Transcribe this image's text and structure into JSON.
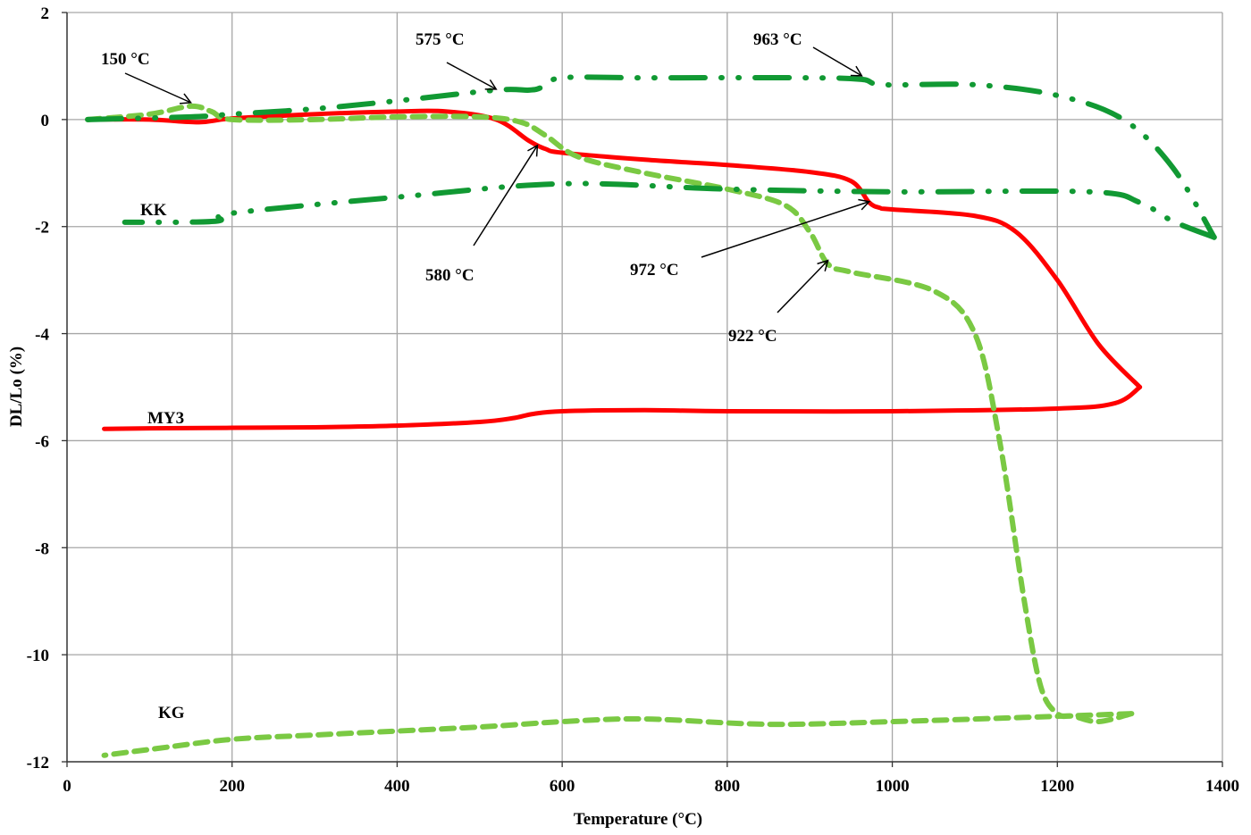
{
  "chart_data": {
    "type": "line",
    "title": "",
    "xlabel": "Temperature (°C)",
    "ylabel": "DL/Lo (%)",
    "xlim": [
      0,
      1400
    ],
    "ylim": [
      -12,
      2
    ],
    "x_ticks": [
      "0",
      "200",
      "400",
      "600",
      "800",
      "1000",
      "1200",
      "1400"
    ],
    "y_ticks": [
      "2",
      "0",
      "-2",
      "-4",
      "-6",
      "-8",
      "-10",
      "-12"
    ],
    "grid": true,
    "legend": "inline labels",
    "series": [
      {
        "name": "MY3",
        "color": "#ff0000",
        "style": "solid",
        "heating": {
          "x": [
            25,
            100,
            160,
            200,
            300,
            400,
            460,
            520,
            560,
            580,
            600,
            700,
            800,
            900,
            950,
            972,
            985,
            1000,
            1100,
            1150,
            1200,
            1250,
            1300
          ],
          "y": [
            0,
            0,
            -0.05,
            0.02,
            0.1,
            0.15,
            0.15,
            0.0,
            -0.4,
            -0.55,
            -0.62,
            -0.75,
            -0.85,
            -0.98,
            -1.15,
            -1.55,
            -1.65,
            -1.68,
            -1.8,
            -2.1,
            -3.0,
            -4.2,
            -5.0
          ]
        },
        "cooling": {
          "x": [
            1300,
            1270,
            1200,
            1000,
            800,
            700,
            600,
            565,
            540,
            500,
            400,
            300,
            200,
            100,
            45
          ],
          "y": [
            -5.0,
            -5.3,
            -5.4,
            -5.45,
            -5.45,
            -5.43,
            -5.45,
            -5.5,
            -5.58,
            -5.65,
            -5.72,
            -5.75,
            -5.76,
            -5.77,
            -5.78
          ]
        }
      },
      {
        "name": "KG",
        "color": "#7ac943",
        "style": "dashed",
        "heating": {
          "x": [
            25,
            100,
            150,
            175,
            200,
            300,
            400,
            500,
            550,
            580,
            620,
            700,
            800,
            870,
            900,
            922,
            950,
            1050,
            1100,
            1130,
            1160,
            1180,
            1200,
            1220,
            1250,
            1290
          ],
          "y": [
            0,
            0.1,
            0.25,
            0.15,
            0.0,
            0.0,
            0.05,
            0.05,
            -0.05,
            -0.3,
            -0.7,
            -1.0,
            -1.3,
            -1.6,
            -2.1,
            -2.7,
            -2.85,
            -3.2,
            -4.0,
            -6.0,
            -9.0,
            -10.6,
            -11.1,
            -11.15,
            -11.25,
            -11.1
          ]
        },
        "cooling": {
          "x": [
            1290,
            1200,
            1000,
            850,
            700,
            600,
            500,
            300,
            200,
            110,
            45
          ],
          "y": [
            -11.1,
            -11.15,
            -11.25,
            -11.3,
            -11.2,
            -11.25,
            -11.35,
            -11.5,
            -11.58,
            -11.75,
            -11.88
          ]
        }
      },
      {
        "name": "KK",
        "color": "#119933",
        "style": "dash-dot-dot",
        "heating": {
          "x": [
            25,
            150,
            200,
            300,
            400,
            520,
            560,
            575,
            600,
            700,
            900,
            963,
            990,
            1100,
            1200,
            1280,
            1340,
            1390
          ],
          "y": [
            0,
            0.05,
            0.1,
            0.2,
            0.35,
            0.55,
            0.55,
            0.6,
            0.78,
            0.78,
            0.78,
            0.75,
            0.65,
            0.65,
            0.45,
            0.0,
            -0.9,
            -2.2
          ]
        },
        "cooling": {
          "x": [
            1390,
            1340,
            1300,
            1240,
            1000,
            800,
            600,
            400,
            200,
            180,
            70
          ],
          "y": [
            -2.2,
            -1.9,
            -1.55,
            -1.35,
            -1.35,
            -1.3,
            -1.2,
            -1.45,
            -1.75,
            -1.9,
            -1.92
          ]
        }
      }
    ],
    "annotations": [
      {
        "text": "150 °C",
        "target_x": 150,
        "target_y": 0.25
      },
      {
        "text": "575 °C",
        "target_x": 520,
        "target_y": 0.5
      },
      {
        "text": "963 °C",
        "target_x": 963,
        "target_y": 0.75
      },
      {
        "text": "580 °C",
        "target_x": 570,
        "target_y": -0.55
      },
      {
        "text": "972 °C",
        "target_x": 972,
        "target_y": -1.6
      },
      {
        "text": "922 °C",
        "target_x": 922,
        "target_y": -2.7
      }
    ],
    "series_labels": [
      "KK",
      "MY3",
      "KG"
    ]
  }
}
